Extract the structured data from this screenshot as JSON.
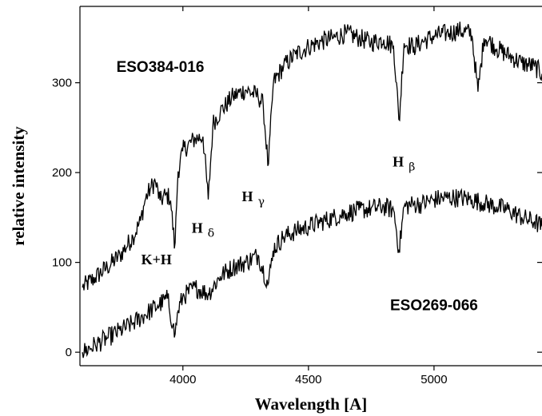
{
  "chart_data": {
    "type": "line",
    "xlabel": "Wavelength [A]",
    "ylabel": "relative intensity",
    "xlim": [
      3590,
      5430
    ],
    "ylim": [
      -15,
      385
    ],
    "xticks": [
      4000,
      4500,
      5000
    ],
    "yticks": [
      0,
      100,
      200,
      300
    ],
    "grid": false,
    "series": [
      {
        "name": "ESO384-016",
        "x": [
          3600,
          3650,
          3700,
          3750,
          3800,
          3830,
          3850,
          3870,
          3890,
          3910,
          3930,
          3950,
          3968,
          3980,
          4000,
          4050,
          4080,
          4101,
          4120,
          4150,
          4200,
          4250,
          4300,
          4320,
          4340,
          4360,
          4400,
          4450,
          4500,
          4550,
          4600,
          4650,
          4700,
          4750,
          4800,
          4840,
          4861,
          4880,
          4920,
          4950,
          5000,
          5050,
          5100,
          5150,
          5175,
          5200,
          5250,
          5300,
          5350,
          5400,
          5430
        ],
        "values": [
          72,
          83,
          95,
          108,
          128,
          145,
          170,
          182,
          190,
          168,
          175,
          172,
          115,
          200,
          225,
          238,
          240,
          170,
          255,
          268,
          285,
          292,
          285,
          275,
          205,
          300,
          318,
          332,
          340,
          346,
          350,
          355,
          350,
          345,
          348,
          340,
          255,
          344,
          340,
          345,
          352,
          355,
          358,
          355,
          290,
          352,
          338,
          330,
          322,
          318,
          310
        ]
      },
      {
        "name": "ESO269-066",
        "x": [
          3600,
          3650,
          3700,
          3750,
          3800,
          3850,
          3900,
          3940,
          3960,
          3968,
          3980,
          4000,
          4050,
          4101,
          4150,
          4200,
          4250,
          4300,
          4340,
          4360,
          4400,
          4450,
          4500,
          4550,
          4600,
          4650,
          4700,
          4750,
          4800,
          4840,
          4861,
          4880,
          4920,
          4950,
          5000,
          5050,
          5100,
          5150,
          5200,
          5250,
          5300,
          5350,
          5400,
          5430
        ],
        "values": [
          0,
          8,
          16,
          24,
          32,
          42,
          52,
          60,
          30,
          18,
          45,
          62,
          72,
          65,
          85,
          95,
          100,
          108,
          75,
          115,
          128,
          135,
          140,
          145,
          150,
          155,
          158,
          160,
          162,
          158,
          112,
          162,
          165,
          165,
          170,
          172,
          172,
          170,
          166,
          162,
          158,
          150,
          145,
          140
        ]
      }
    ],
    "annotations": [
      {
        "label": "ESO384-016",
        "x": 3910,
        "y": 312
      },
      {
        "label": "ESO269-066",
        "x": 5000,
        "y": 47
      },
      {
        "label": "K+H",
        "sub": "",
        "x": 3895,
        "y": 98
      },
      {
        "label": "H",
        "sub": "δ",
        "x": 4080,
        "y": 133
      },
      {
        "label": "H",
        "sub": "γ",
        "x": 4280,
        "y": 168
      },
      {
        "label": "H",
        "sub": "β",
        "x": 4880,
        "y": 207
      }
    ]
  }
}
